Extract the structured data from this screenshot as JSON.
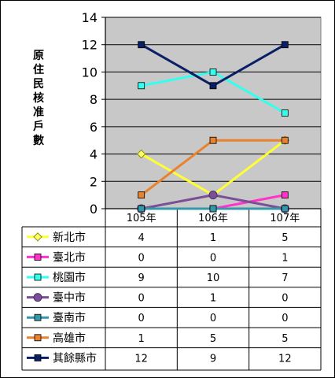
{
  "chart_data": {
    "type": "line",
    "ylabel": "原住民核准戶數",
    "categories": [
      "105年",
      "106年",
      "107年"
    ],
    "ylim": [
      0,
      14
    ],
    "yticks": [
      0,
      2,
      4,
      6,
      8,
      10,
      12,
      14
    ],
    "grid": true,
    "legend": "table-below",
    "series": [
      {
        "name": "新北市",
        "values": [
          4,
          1,
          5
        ],
        "color": "#ffff33",
        "marker": "diamond"
      },
      {
        "name": "臺北市",
        "values": [
          0,
          0,
          1
        ],
        "color": "#ff33cc",
        "marker": "square"
      },
      {
        "name": "桃園市",
        "values": [
          9,
          10,
          7
        ],
        "color": "#33ffee",
        "marker": "square"
      },
      {
        "name": "臺中市",
        "values": [
          0,
          1,
          0
        ],
        "color": "#7a4f96",
        "marker": "circle"
      },
      {
        "name": "臺南市",
        "values": [
          0,
          0,
          0
        ],
        "color": "#3399aa",
        "marker": "square"
      },
      {
        "name": "高雄市",
        "values": [
          1,
          5,
          5
        ],
        "color": "#e8822e",
        "marker": "square"
      },
      {
        "name": "其餘縣市",
        "values": [
          12,
          9,
          12
        ],
        "color": "#0a1f66",
        "marker": "square"
      }
    ],
    "plot_bg": "#c8c8c8"
  }
}
